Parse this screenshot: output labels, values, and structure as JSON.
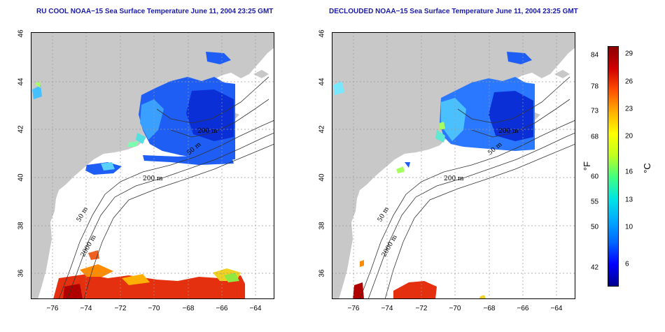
{
  "left_panel": {
    "title": "RU COOL NOAA−15 Sea Surface Temperature June 11, 2004 23:25 GMT",
    "x_ticks": [
      "−76",
      "−74",
      "−72",
      "−70",
      "−68",
      "−66",
      "−64"
    ],
    "y_ticks": [
      "36",
      "38",
      "40",
      "42",
      "44",
      "46"
    ],
    "contours": [
      "200 m",
      "50 m",
      "2000 m",
      "200 m",
      "50 m"
    ]
  },
  "right_panel": {
    "title": "DECLOUDED NOAA−15 Sea Surface Temperature June 11, 2004 23:25 GMT",
    "x_ticks": [
      "−76",
      "−74",
      "−72",
      "−70",
      "−68",
      "−66",
      "−64"
    ],
    "y_ticks": [
      "36",
      "38",
      "40",
      "42",
      "44",
      "46"
    ],
    "contours": [
      "200 m",
      "50 m",
      "2000 m",
      "200 m",
      "50 m"
    ]
  },
  "colorbar": {
    "fahrenheit_ticks": [
      "84",
      "78",
      "73",
      "68",
      "60",
      "55",
      "50",
      "42"
    ],
    "celsius_ticks": [
      "29",
      "26",
      "23",
      "20",
      "16",
      "13",
      "10",
      "6"
    ],
    "fahrenheit_unit": "°F",
    "celsius_unit": "°C",
    "colors": [
      "#00008b",
      "#0000ff",
      "#0066ff",
      "#00aaff",
      "#00e5e5",
      "#40ff80",
      "#c0ff20",
      "#ffff00",
      "#ffb000",
      "#ff5000",
      "#d00000",
      "#8b0000"
    ]
  },
  "colors": {
    "land": "#c8c8c8",
    "ocean": "#ffffff",
    "title": "#1a1aa6",
    "grid": "#999999"
  }
}
